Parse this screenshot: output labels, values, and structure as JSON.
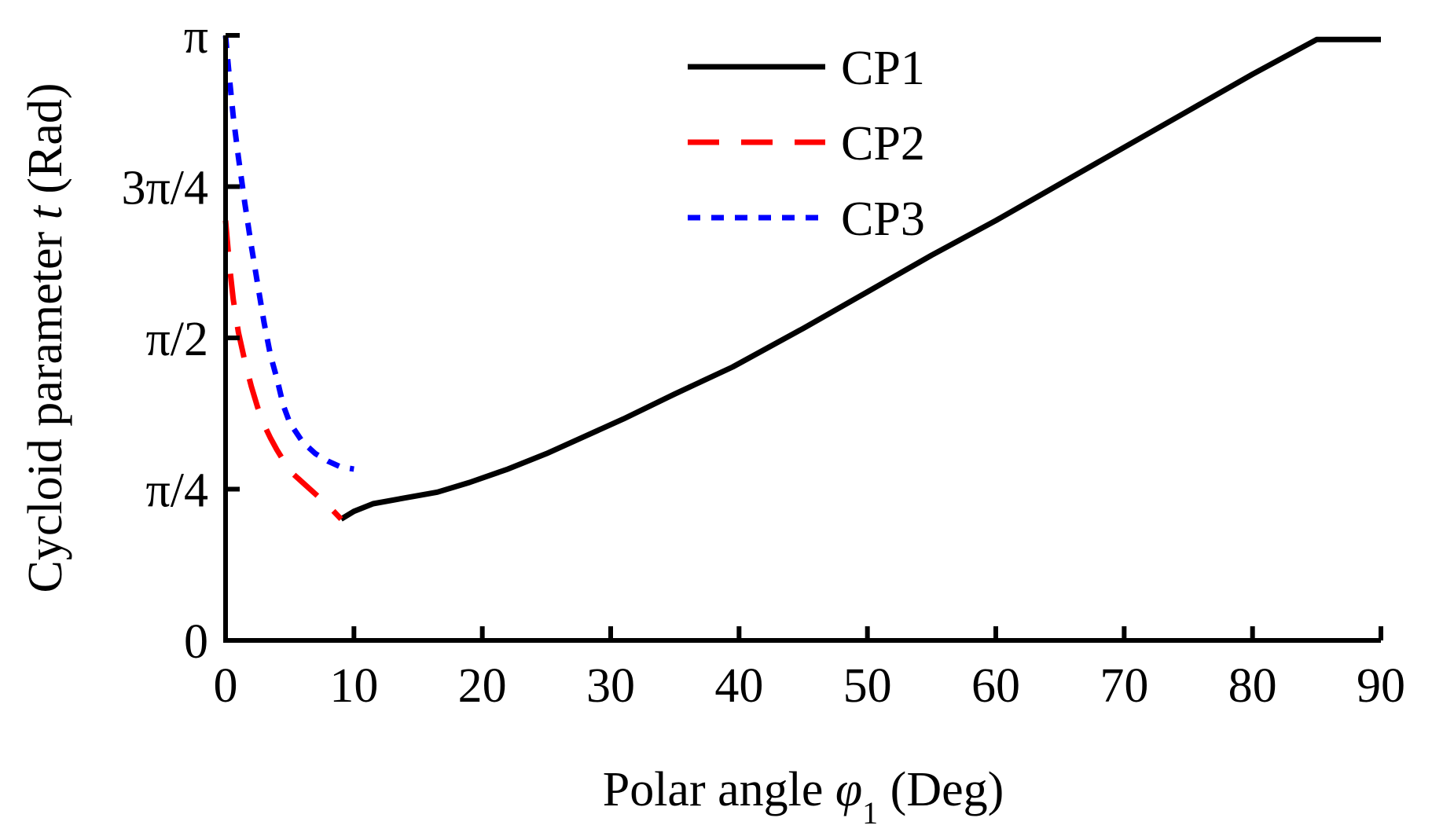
{
  "chart_data": {
    "type": "line",
    "title": "",
    "xlabel": {
      "pre": "Polar angle ",
      "symbol": "φ",
      "sub": "1",
      "post": " (Deg)"
    },
    "ylabel": {
      "pre": "Cycloid parameter ",
      "symbol": "t",
      "post": " (Rad)"
    },
    "xlim": [
      0,
      90
    ],
    "ylim": [
      0,
      3.14159
    ],
    "x_ticks": [
      0,
      10,
      20,
      30,
      40,
      50,
      60,
      70,
      80,
      90
    ],
    "x_tick_labels": [
      "0",
      "10",
      "20",
      "30",
      "40",
      "50",
      "60",
      "70",
      "80",
      "90"
    ],
    "y_ticks": [
      0,
      0.7854,
      1.5708,
      2.3562,
      3.14159
    ],
    "y_tick_labels": [
      "0",
      "π/4",
      "π/2",
      "3π/4",
      "π"
    ],
    "grid": false,
    "legend_position": "top-center",
    "series": [
      {
        "name": "CP1",
        "color": "#000000",
        "dash": "solid",
        "x": [
          9,
          10,
          11.5,
          14,
          16.5,
          19,
          22,
          25,
          28,
          31,
          35,
          39.5,
          45,
          50,
          55,
          60,
          65,
          70,
          75,
          80,
          85,
          90
        ],
        "y": [
          0.63,
          0.67,
          0.71,
          0.74,
          0.77,
          0.82,
          0.89,
          0.97,
          1.06,
          1.15,
          1.28,
          1.42,
          1.62,
          1.81,
          2.0,
          2.18,
          2.37,
          2.56,
          2.75,
          2.94,
          3.12,
          3.12
        ]
      },
      {
        "name": "CP2",
        "color": "#ff0000",
        "dash": "long-dash",
        "x": [
          0,
          0.3,
          0.6,
          1.0,
          1.5,
          2.0,
          2.5,
          3.0,
          3.5,
          4.0,
          5.0,
          6.0,
          7.0,
          8.0,
          9.0
        ],
        "y": [
          2.18,
          1.95,
          1.77,
          1.6,
          1.45,
          1.32,
          1.21,
          1.12,
          1.05,
          0.99,
          0.88,
          0.82,
          0.76,
          0.7,
          0.63
        ]
      },
      {
        "name": "CP3",
        "color": "#0000ff",
        "dash": "short-dash",
        "x": [
          0,
          0.3,
          0.6,
          1.0,
          1.5,
          2.0,
          2.5,
          3.0,
          3.5,
          4.0,
          4.5,
          5.0,
          6.0,
          7.0,
          8.0,
          9.0,
          10.0
        ],
        "y": [
          3.14,
          2.92,
          2.72,
          2.51,
          2.27,
          2.05,
          1.85,
          1.65,
          1.48,
          1.36,
          1.22,
          1.13,
          1.03,
          0.97,
          0.93,
          0.9,
          0.89
        ]
      }
    ]
  }
}
